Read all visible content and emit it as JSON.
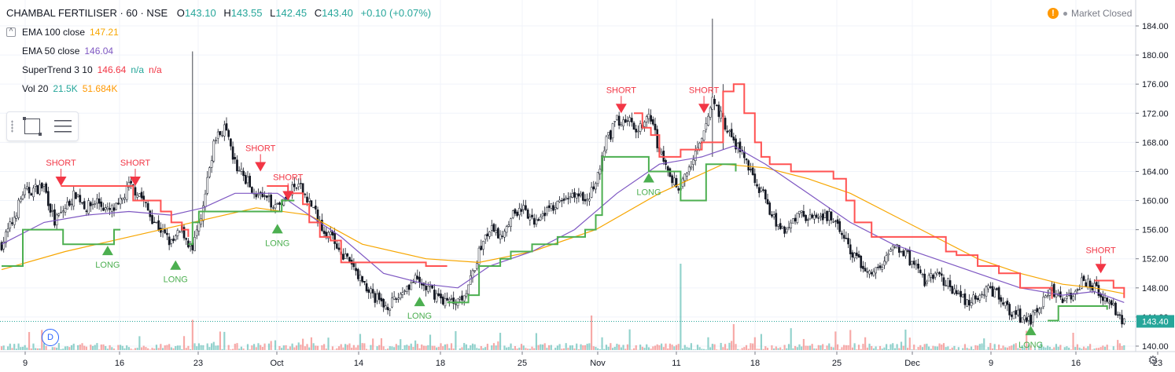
{
  "header": {
    "symbol": "CHAMBAL FERTILISER · 60 · NSE",
    "open_label": "O",
    "open": "143.10",
    "high_label": "H",
    "high": "143.55",
    "low_label": "L",
    "low": "142.45",
    "close_label": "C",
    "close": "143.40",
    "change": "+0.10 (+0.07%)"
  },
  "indicators": [
    {
      "name": "EMA 100 close",
      "values": [
        "147.21"
      ],
      "colors": [
        "#f7a600"
      ]
    },
    {
      "name": "EMA 50 close",
      "values": [
        "146.04"
      ],
      "colors": [
        "#7e57c2"
      ]
    },
    {
      "name": "SuperTrend 3 10",
      "values": [
        "146.64",
        "n/a",
        "n/a"
      ],
      "colors": [
        "#f23645",
        "#26a69a",
        "#f23645"
      ]
    },
    {
      "name": "Vol 20",
      "values": [
        "21.5K",
        "51.684K"
      ],
      "colors": [
        "#26a69a",
        "#ff9800"
      ]
    }
  ],
  "status": {
    "alert_icon": "!",
    "text": "Market Closed"
  },
  "badge": {
    "label": "D"
  },
  "price_axis": {
    "ticks": [
      "184.00",
      "180.00",
      "176.00",
      "172.00",
      "168.00",
      "164.00",
      "160.00",
      "156.00",
      "152.00",
      "148.00",
      "144.00",
      "140.00"
    ],
    "last_label": "143.40"
  },
  "time_axis": {
    "labels": [
      "9",
      "16",
      "23",
      "Oct",
      "14",
      "18",
      "25",
      "Nov",
      "11",
      "18",
      "25",
      "Dec",
      "9",
      "16",
      "23"
    ]
  },
  "colors": {
    "up": "#26a69a",
    "down": "#ef5350",
    "candle_up": "#ffffff",
    "candle_border": "#131722",
    "ema100": "#f7a600",
    "ema50": "#7e57c2",
    "st_up": "#4caf50",
    "st_down": "#ff5252",
    "grid": "#f0f3fa"
  },
  "chart_data": {
    "type": "candlestick",
    "ylim": [
      139,
      186
    ],
    "x_tick_labels": [
      "9",
      "16",
      "23",
      "Oct",
      "14",
      "18",
      "25",
      "Nov",
      "11",
      "18",
      "25",
      "Dec",
      "9",
      "16",
      "23"
    ],
    "close_path": [
      {
        "i": 0,
        "y": 154
      },
      {
        "i": 5,
        "y": 157
      },
      {
        "i": 10,
        "y": 161
      },
      {
        "i": 15,
        "y": 161.5
      },
      {
        "i": 20,
        "y": 162
      },
      {
        "i": 25,
        "y": 157
      },
      {
        "i": 30,
        "y": 159
      },
      {
        "i": 35,
        "y": 161
      },
      {
        "i": 40,
        "y": 159
      },
      {
        "i": 45,
        "y": 160
      },
      {
        "i": 50,
        "y": 158.5
      },
      {
        "i": 55,
        "y": 159
      },
      {
        "i": 60,
        "y": 162
      },
      {
        "i": 65,
        "y": 161
      },
      {
        "i": 70,
        "y": 158
      },
      {
        "i": 75,
        "y": 156
      },
      {
        "i": 80,
        "y": 154
      },
      {
        "i": 85,
        "y": 156
      },
      {
        "i": 90,
        "y": 153
      },
      {
        "i": 95,
        "y": 159
      },
      {
        "i": 100,
        "y": 168
      },
      {
        "i": 105,
        "y": 170
      },
      {
        "i": 110,
        "y": 165
      },
      {
        "i": 115,
        "y": 163
      },
      {
        "i": 120,
        "y": 161
      },
      {
        "i": 125,
        "y": 160
      },
      {
        "i": 130,
        "y": 159.5
      },
      {
        "i": 135,
        "y": 161
      },
      {
        "i": 140,
        "y": 162
      },
      {
        "i": 145,
        "y": 160
      },
      {
        "i": 150,
        "y": 157
      },
      {
        "i": 155,
        "y": 155
      },
      {
        "i": 160,
        "y": 153
      },
      {
        "i": 165,
        "y": 151
      },
      {
        "i": 170,
        "y": 149
      },
      {
        "i": 175,
        "y": 147
      },
      {
        "i": 180,
        "y": 145.5
      },
      {
        "i": 185,
        "y": 146
      },
      {
        "i": 190,
        "y": 148
      },
      {
        "i": 195,
        "y": 149
      },
      {
        "i": 200,
        "y": 148
      },
      {
        "i": 205,
        "y": 147
      },
      {
        "i": 210,
        "y": 146
      },
      {
        "i": 215,
        "y": 146.5
      },
      {
        "i": 220,
        "y": 148
      },
      {
        "i": 225,
        "y": 153
      },
      {
        "i": 230,
        "y": 156
      },
      {
        "i": 235,
        "y": 155
      },
      {
        "i": 240,
        "y": 158
      },
      {
        "i": 245,
        "y": 159
      },
      {
        "i": 250,
        "y": 157
      },
      {
        "i": 255,
        "y": 158.5
      },
      {
        "i": 260,
        "y": 159
      },
      {
        "i": 265,
        "y": 160
      },
      {
        "i": 270,
        "y": 161
      },
      {
        "i": 275,
        "y": 160
      },
      {
        "i": 280,
        "y": 162
      },
      {
        "i": 285,
        "y": 168
      },
      {
        "i": 290,
        "y": 171
      },
      {
        "i": 295,
        "y": 171
      },
      {
        "i": 300,
        "y": 170
      },
      {
        "i": 305,
        "y": 172
      },
      {
        "i": 310,
        "y": 167
      },
      {
        "i": 315,
        "y": 163
      },
      {
        "i": 320,
        "y": 162
      },
      {
        "i": 325,
        "y": 165
      },
      {
        "i": 330,
        "y": 168
      },
      {
        "i": 335,
        "y": 174
      },
      {
        "i": 340,
        "y": 171
      },
      {
        "i": 345,
        "y": 168
      },
      {
        "i": 350,
        "y": 166
      },
      {
        "i": 355,
        "y": 163
      },
      {
        "i": 360,
        "y": 160
      },
      {
        "i": 365,
        "y": 157
      },
      {
        "i": 370,
        "y": 156
      },
      {
        "i": 375,
        "y": 158
      },
      {
        "i": 380,
        "y": 158
      },
      {
        "i": 385,
        "y": 157
      },
      {
        "i": 390,
        "y": 158
      },
      {
        "i": 395,
        "y": 156
      },
      {
        "i": 400,
        "y": 153
      },
      {
        "i": 405,
        "y": 151
      },
      {
        "i": 410,
        "y": 150
      },
      {
        "i": 415,
        "y": 151
      },
      {
        "i": 420,
        "y": 154
      },
      {
        "i": 425,
        "y": 153
      },
      {
        "i": 430,
        "y": 151
      },
      {
        "i": 435,
        "y": 149
      },
      {
        "i": 440,
        "y": 149.5
      },
      {
        "i": 445,
        "y": 149
      },
      {
        "i": 450,
        "y": 147
      },
      {
        "i": 455,
        "y": 146
      },
      {
        "i": 460,
        "y": 146.5
      },
      {
        "i": 465,
        "y": 148
      },
      {
        "i": 470,
        "y": 147
      },
      {
        "i": 475,
        "y": 145
      },
      {
        "i": 480,
        "y": 144
      },
      {
        "i": 485,
        "y": 143.5
      },
      {
        "i": 490,
        "y": 146
      },
      {
        "i": 495,
        "y": 148
      },
      {
        "i": 500,
        "y": 146
      },
      {
        "i": 505,
        "y": 147
      },
      {
        "i": 510,
        "y": 149
      },
      {
        "i": 515,
        "y": 148
      },
      {
        "i": 520,
        "y": 146
      },
      {
        "i": 525,
        "y": 145
      },
      {
        "i": 529,
        "y": 143.4
      }
    ],
    "spikes": [
      {
        "i": 90,
        "high": 180.5,
        "low": 153
      },
      {
        "i": 335,
        "high": 185,
        "low": 166
      },
      {
        "i": 340,
        "high": 176,
        "low": 167
      }
    ],
    "supertrend": {
      "segments": [
        {
          "dir": "up",
          "pts": [
            {
              "i": 0,
              "y": 151
            },
            {
              "i": 4,
              "y": 151
            },
            {
              "i": 10,
              "y": 156
            },
            {
              "i": 28,
              "y": 156
            },
            {
              "i": 29,
              "y": 154
            },
            {
              "i": 50,
              "y": 154
            },
            {
              "i": 53,
              "y": 156
            },
            {
              "i": 56,
              "y": 156
            }
          ]
        },
        {
          "dir": "down",
          "pts": [
            {
              "i": 28,
              "y": 162
            },
            {
              "i": 56,
              "y": 162
            },
            {
              "i": 62,
              "y": 160
            },
            {
              "i": 70,
              "y": 160
            },
            {
              "i": 75,
              "y": 158.5
            },
            {
              "i": 80,
              "y": 157
            },
            {
              "i": 85,
              "y": 156
            },
            {
              "i": 88,
              "y": 155
            }
          ]
        },
        {
          "dir": "up",
          "pts": [
            {
              "i": 88,
              "y": 154
            },
            {
              "i": 90,
              "y": 157
            },
            {
              "i": 93,
              "y": 158.5
            },
            {
              "i": 130,
              "y": 158.5
            },
            {
              "i": 132,
              "y": 160
            },
            {
              "i": 138,
              "y": 160
            }
          ]
        },
        {
          "dir": "down",
          "pts": [
            {
              "i": 125,
              "y": 162
            },
            {
              "i": 130,
              "y": 162
            },
            {
              "i": 135,
              "y": 161
            },
            {
              "i": 142,
              "y": 159.5
            },
            {
              "i": 145,
              "y": 157
            },
            {
              "i": 150,
              "y": 155
            },
            {
              "i": 155,
              "y": 154.5
            },
            {
              "i": 160,
              "y": 151.5
            },
            {
              "i": 180,
              "y": 151.5
            },
            {
              "i": 200,
              "y": 151
            },
            {
              "i": 210,
              "y": 151
            }
          ]
        },
        {
          "dir": "up",
          "pts": [
            {
              "i": 210,
              "y": 146
            },
            {
              "i": 220,
              "y": 147
            },
            {
              "i": 225,
              "y": 151
            },
            {
              "i": 235,
              "y": 152
            },
            {
              "i": 240,
              "y": 153
            },
            {
              "i": 250,
              "y": 154
            },
            {
              "i": 262,
              "y": 155
            },
            {
              "i": 275,
              "y": 156
            },
            {
              "i": 280,
              "y": 158
            },
            {
              "i": 283,
              "y": 166
            },
            {
              "i": 300,
              "y": 166
            },
            {
              "i": 305,
              "y": 164
            },
            {
              "i": 318,
              "y": 164
            },
            {
              "i": 320,
              "y": 160
            },
            {
              "i": 330,
              "y": 160
            },
            {
              "i": 332,
              "y": 165
            },
            {
              "i": 342,
              "y": 165
            },
            {
              "i": 346,
              "y": 164
            }
          ]
        },
        {
          "dir": "down",
          "pts": [
            {
              "i": 298,
              "y": 172
            },
            {
              "i": 302,
              "y": 170
            },
            {
              "i": 306,
              "y": 169
            },
            {
              "i": 310,
              "y": 166
            },
            {
              "i": 320,
              "y": 167
            },
            {
              "i": 330,
              "y": 168
            },
            {
              "i": 340,
              "y": 175
            },
            {
              "i": 345,
              "y": 176
            },
            {
              "i": 350,
              "y": 172
            },
            {
              "i": 355,
              "y": 168
            },
            {
              "i": 358,
              "y": 166
            },
            {
              "i": 362,
              "y": 165
            },
            {
              "i": 372,
              "y": 164
            },
            {
              "i": 385,
              "y": 164
            },
            {
              "i": 392,
              "y": 163
            },
            {
              "i": 398,
              "y": 160
            },
            {
              "i": 402,
              "y": 157
            },
            {
              "i": 410,
              "y": 155
            },
            {
              "i": 420,
              "y": 155
            },
            {
              "i": 440,
              "y": 155
            },
            {
              "i": 445,
              "y": 153
            },
            {
              "i": 450,
              "y": 152.5
            },
            {
              "i": 460,
              "y": 151
            },
            {
              "i": 470,
              "y": 150
            },
            {
              "i": 480,
              "y": 148
            },
            {
              "i": 490,
              "y": 148
            },
            {
              "i": 495,
              "y": 146.5
            }
          ]
        },
        {
          "dir": "up",
          "pts": [
            {
              "i": 493,
              "y": 143.5
            },
            {
              "i": 498,
              "y": 145.5
            },
            {
              "i": 510,
              "y": 145.5
            },
            {
              "i": 520,
              "y": 145.5
            },
            {
              "i": 521,
              "y": 145
            }
          ]
        },
        {
          "dir": "down",
          "pts": [
            {
              "i": 515,
              "y": 149
            },
            {
              "i": 520,
              "y": 149
            },
            {
              "i": 524,
              "y": 148
            },
            {
              "i": 529,
              "y": 146.6
            }
          ]
        }
      ]
    },
    "ema50": [
      {
        "i": 0,
        "y": 154
      },
      {
        "i": 20,
        "y": 157
      },
      {
        "i": 40,
        "y": 158
      },
      {
        "i": 60,
        "y": 158.5
      },
      {
        "i": 80,
        "y": 158
      },
      {
        "i": 95,
        "y": 159
      },
      {
        "i": 110,
        "y": 161
      },
      {
        "i": 130,
        "y": 161
      },
      {
        "i": 145,
        "y": 158
      },
      {
        "i": 160,
        "y": 155
      },
      {
        "i": 180,
        "y": 150
      },
      {
        "i": 200,
        "y": 148.5
      },
      {
        "i": 215,
        "y": 148
      },
      {
        "i": 230,
        "y": 151
      },
      {
        "i": 250,
        "y": 153
      },
      {
        "i": 270,
        "y": 156
      },
      {
        "i": 290,
        "y": 161
      },
      {
        "i": 310,
        "y": 165
      },
      {
        "i": 330,
        "y": 166
      },
      {
        "i": 345,
        "y": 167.5
      },
      {
        "i": 360,
        "y": 165
      },
      {
        "i": 380,
        "y": 161
      },
      {
        "i": 400,
        "y": 157
      },
      {
        "i": 420,
        "y": 154
      },
      {
        "i": 440,
        "y": 152
      },
      {
        "i": 460,
        "y": 150
      },
      {
        "i": 480,
        "y": 148
      },
      {
        "i": 500,
        "y": 147
      },
      {
        "i": 515,
        "y": 147.5
      },
      {
        "i": 529,
        "y": 146
      }
    ],
    "ema100": [
      {
        "i": 0,
        "y": 150.5
      },
      {
        "i": 30,
        "y": 153
      },
      {
        "i": 60,
        "y": 155
      },
      {
        "i": 90,
        "y": 157
      },
      {
        "i": 120,
        "y": 159
      },
      {
        "i": 145,
        "y": 158
      },
      {
        "i": 170,
        "y": 154
      },
      {
        "i": 200,
        "y": 152
      },
      {
        "i": 225,
        "y": 151.5
      },
      {
        "i": 250,
        "y": 153
      },
      {
        "i": 280,
        "y": 156
      },
      {
        "i": 310,
        "y": 161
      },
      {
        "i": 340,
        "y": 165
      },
      {
        "i": 360,
        "y": 164.5
      },
      {
        "i": 380,
        "y": 163
      },
      {
        "i": 400,
        "y": 161
      },
      {
        "i": 420,
        "y": 158
      },
      {
        "i": 440,
        "y": 155
      },
      {
        "i": 460,
        "y": 152
      },
      {
        "i": 480,
        "y": 150
      },
      {
        "i": 500,
        "y": 148.5
      },
      {
        "i": 515,
        "y": 148
      },
      {
        "i": 529,
        "y": 147.2
      }
    ],
    "signals": [
      {
        "type": "short",
        "label": "SHORT",
        "i": 28,
        "y": 162
      },
      {
        "type": "long",
        "label": "LONG",
        "i": 50,
        "y": 154
      },
      {
        "type": "short",
        "label": "SHORT",
        "i": 63,
        "y": 162
      },
      {
        "type": "long",
        "label": "LONG",
        "i": 82,
        "y": 152
      },
      {
        "type": "short",
        "label": "SHORT",
        "i": 122,
        "y": 164
      },
      {
        "type": "long",
        "label": "LONG",
        "i": 130,
        "y": 157
      },
      {
        "type": "short",
        "label": "SHORT",
        "i": 135,
        "y": 160
      },
      {
        "type": "long",
        "label": "LONG",
        "i": 197,
        "y": 147
      },
      {
        "type": "short",
        "label": "SHORT",
        "i": 292,
        "y": 172
      },
      {
        "type": "long",
        "label": "LONG",
        "i": 305,
        "y": 164
      },
      {
        "type": "short",
        "label": "SHORT",
        "i": 331,
        "y": 172
      },
      {
        "type": "long",
        "label": "LONG",
        "i": 485,
        "y": 143
      },
      {
        "type": "short",
        "label": "SHORT",
        "i": 518,
        "y": 150
      }
    ],
    "volume_spikes": [
      {
        "i": 320,
        "v": 1.0,
        "up": true
      },
      {
        "i": 90,
        "v": 0.35,
        "up": false
      },
      {
        "i": 278,
        "v": 0.4,
        "up": false
      },
      {
        "i": 345,
        "v": 0.3,
        "up": false
      },
      {
        "i": 505,
        "v": 0.2,
        "up": false
      }
    ],
    "n_bars": 530,
    "tick_positions": [
      8,
      38,
      63,
      88,
      114,
      140,
      166,
      190,
      215,
      240,
      266,
      290,
      315,
      342,
      368
    ]
  }
}
